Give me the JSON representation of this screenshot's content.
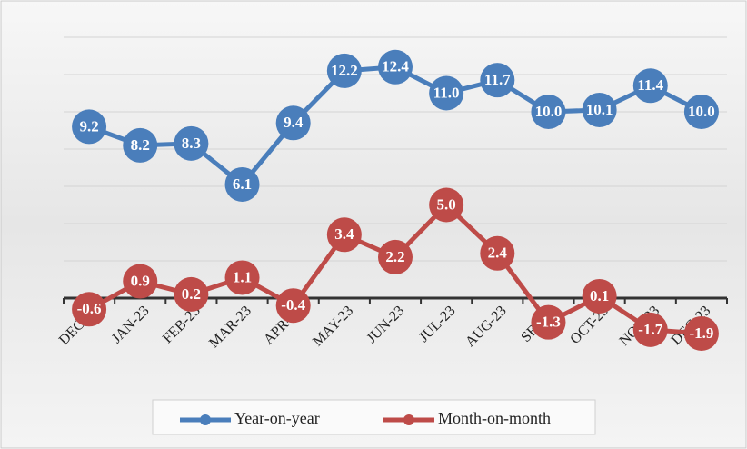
{
  "chart_data": {
    "type": "line",
    "categories": [
      "DEC-22",
      "JAN-23",
      "FEB-23",
      "MAR-23",
      "APR-23",
      "MAY-23",
      "JUN-23",
      "JUL-23",
      "AUG-23",
      "SEP-23",
      "OCT-23",
      "NOV-23",
      "DEC-23"
    ],
    "series": [
      {
        "name": "Year-on-year",
        "color": "#4a7ebb",
        "values": [
          9.2,
          8.2,
          8.3,
          6.1,
          9.4,
          12.2,
          12.4,
          11.0,
          11.7,
          10.0,
          10.1,
          11.4,
          10.0
        ]
      },
      {
        "name": "Month-on-month",
        "color": "#be4b48",
        "values": [
          -0.6,
          0.9,
          0.2,
          1.1,
          -0.4,
          3.4,
          2.2,
          5.0,
          2.4,
          -1.3,
          0.1,
          -1.7,
          -1.9
        ]
      }
    ],
    "value_labels": [
      [
        "9.2",
        "8.2",
        "8.3",
        "6.1",
        "9.4",
        "12.2",
        "12.4",
        "11.0",
        "11.7",
        "10.0",
        "10.1",
        "11.4",
        "10.0"
      ],
      [
        "-0.6",
        "0.9",
        "0.2",
        "1.1",
        "-0.4",
        "3.4",
        "2.2",
        "5.0",
        "2.4",
        "-1.3",
        "0.1",
        "-1.7",
        "-1.9"
      ]
    ],
    "ylim": [
      -2,
      14
    ],
    "yticks": [
      0,
      2,
      4,
      6,
      8,
      10,
      12,
      14
    ],
    "grid": true,
    "legend": "bottom"
  }
}
